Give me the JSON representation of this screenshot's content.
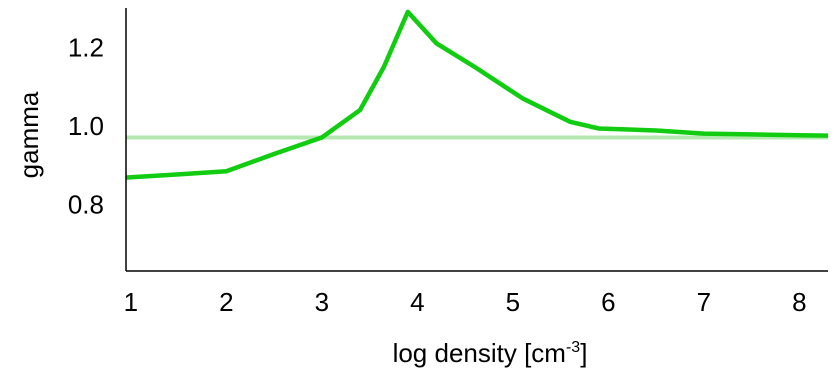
{
  "chart_data": {
    "type": "line",
    "title": "",
    "xlabel": {
      "base": "log density [cm",
      "sup": "-3",
      "suffix": "]"
    },
    "ylabel": "gamma",
    "xlim": [
      0.95,
      8.3
    ],
    "ylim": [
      0.63,
      1.3
    ],
    "x_ticks": [
      "1",
      "2",
      "3",
      "4",
      "5",
      "6",
      "7",
      "8"
    ],
    "y_ticks": [
      "0.8",
      "1.0",
      "1.2"
    ],
    "series": [
      {
        "color": "#11cc11",
        "x": [
          0.95,
          1.5,
          2.0,
          2.5,
          3.0,
          3.4,
          3.65,
          3.9,
          4.2,
          4.6,
          5.1,
          5.6,
          5.9,
          6.5,
          7.0,
          7.5,
          8.0,
          8.3
        ],
        "y": [
          0.868,
          0.876,
          0.884,
          0.928,
          0.97,
          1.04,
          1.15,
          1.29,
          1.21,
          1.15,
          1.07,
          1.01,
          0.993,
          0.988,
          0.98,
          0.978,
          0.976,
          0.975
        ]
      },
      {
        "color": "#b5e8b0",
        "x": [
          0.95,
          8.3
        ],
        "y": [
          0.97,
          0.97
        ]
      }
    ]
  }
}
